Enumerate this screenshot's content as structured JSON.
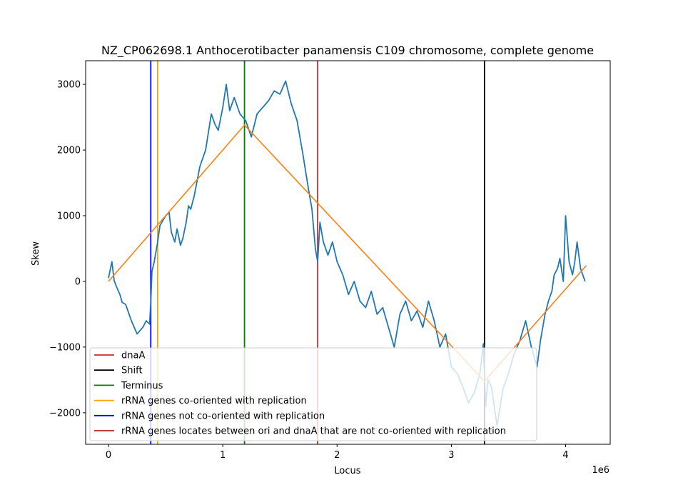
{
  "chart_data": {
    "type": "line",
    "title": "NZ_CP062698.1 Anthocerotibacter panamensis C109 chromosome, complete genome",
    "xlabel": "Locus",
    "ylabel": "Skew",
    "x_offset_label": "1e6",
    "xlim": [
      -0.2,
      4.39
    ],
    "ylim": [
      -2480,
      3360
    ],
    "x_ticks": [
      0,
      1,
      2,
      3,
      4
    ],
    "x_tick_labels": [
      "0",
      "1",
      "2",
      "3",
      "4"
    ],
    "y_ticks": [
      -2000,
      -1000,
      0,
      1000,
      2000,
      3000
    ],
    "y_tick_labels": [
      "−2000",
      "−1000",
      "0",
      "1000",
      "2000",
      "3000"
    ],
    "grid": false,
    "legend_position": "lower-left",
    "series": [
      {
        "name": "",
        "color": "#1f77b4",
        "x": [
          0,
          0.03,
          0.05,
          0.07,
          0.1,
          0.12,
          0.15,
          0.2,
          0.25,
          0.3,
          0.33,
          0.36,
          0.37,
          0.38,
          0.4,
          0.43,
          0.45,
          0.5,
          0.53,
          0.55,
          0.58,
          0.6,
          0.63,
          0.65,
          0.68,
          0.7,
          0.72,
          0.75,
          0.8,
          0.85,
          0.9,
          0.93,
          0.96,
          1.0,
          1.03,
          1.06,
          1.1,
          1.15,
          1.2,
          1.25,
          1.3,
          1.35,
          1.4,
          1.45,
          1.5,
          1.55,
          1.6,
          1.65,
          1.7,
          1.75,
          1.78,
          1.81,
          1.83,
          1.85,
          1.88,
          1.92,
          1.96,
          2.0,
          2.05,
          2.1,
          2.15,
          2.2,
          2.25,
          2.3,
          2.35,
          2.4,
          2.45,
          2.5,
          2.55,
          2.6,
          2.65,
          2.7,
          2.75,
          2.8,
          2.85,
          2.9,
          2.95,
          3.0,
          3.05,
          3.1,
          3.15,
          3.2,
          3.25,
          3.28,
          3.3,
          3.32,
          3.35,
          3.4,
          3.45,
          3.5,
          3.55,
          3.6,
          3.65,
          3.7,
          3.75,
          3.78,
          3.82,
          3.85,
          3.88,
          3.9,
          3.93,
          3.95,
          3.98,
          4.0,
          4.03,
          4.06,
          4.08,
          4.1,
          4.13,
          4.15,
          4.17
        ],
        "values": [
          50,
          300,
          10,
          -80,
          -200,
          -320,
          -350,
          -600,
          -800,
          -700,
          -600,
          -650,
          -300,
          150,
          300,
          600,
          850,
          1000,
          1050,
          750,
          600,
          800,
          550,
          650,
          900,
          1150,
          1100,
          1300,
          1750,
          2000,
          2550,
          2400,
          2300,
          2650,
          3000,
          2600,
          2800,
          2550,
          2450,
          2200,
          2550,
          2650,
          2750,
          2900,
          2850,
          3050,
          2700,
          2450,
          1950,
          1400,
          1100,
          500,
          300,
          900,
          600,
          400,
          600,
          300,
          100,
          -200,
          0,
          -300,
          -400,
          -150,
          -500,
          -400,
          -700,
          -1000,
          -500,
          -300,
          -600,
          -450,
          -700,
          -300,
          -600,
          -1000,
          -800,
          -1300,
          -1400,
          -1600,
          -1850,
          -1700,
          -1400,
          -950,
          -1900,
          -1500,
          -1600,
          -2200,
          -1650,
          -1400,
          -1100,
          -900,
          -600,
          -1000,
          -1300,
          -900,
          -500,
          -300,
          -150,
          100,
          200,
          350,
          0,
          1000,
          300,
          100,
          300,
          600,
          200,
          100,
          0
        ]
      },
      {
        "name": "",
        "color": "#ff7f0e",
        "x": [
          0,
          1.19,
          3.29,
          4.18
        ],
        "values": [
          0,
          2380,
          -1520,
          240
        ]
      }
    ],
    "vertical_lines": [
      {
        "name": "dnaA",
        "x": 1.83,
        "color": "#d62728"
      },
      {
        "name": "Shift",
        "x": 3.29,
        "color": "#000000"
      },
      {
        "name": "Terminus",
        "x": 1.19,
        "color": "#008000"
      },
      {
        "name": "rRNA genes co-oriented with replication",
        "x": 0.43,
        "color": "#ffa500"
      },
      {
        "name": "rRNA genes not co-oriented with replication",
        "x": 0.37,
        "color": "#0000ff"
      }
    ],
    "legend": [
      {
        "label": "dnaA",
        "color": "#d62728"
      },
      {
        "label": "Shift",
        "color": "#000000"
      },
      {
        "label": "Terminus",
        "color": "#008000"
      },
      {
        "label": "rRNA genes co-oriented with replication",
        "color": "#ffa500"
      },
      {
        "label": "rRNA genes not co-oriented with replication",
        "color": "#0000ff"
      },
      {
        "label": "rRNA genes locates between ori and dnaA that are not co-oriented with replication",
        "color": "#b22222"
      }
    ]
  }
}
